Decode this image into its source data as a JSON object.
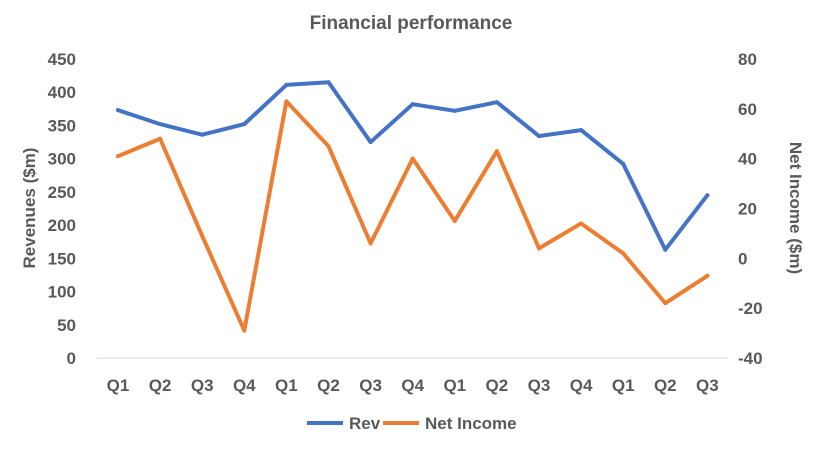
{
  "chart_data": {
    "type": "line",
    "title": "Financial performance",
    "categories": [
      "Q1",
      "Q2",
      "Q3",
      "Q4",
      "Q1",
      "Q2",
      "Q3",
      "Q4",
      "Q1",
      "Q2",
      "Q3",
      "Q4",
      "Q1",
      "Q2",
      "Q3"
    ],
    "ylabel": "Revenues ($m)",
    "y2label": "Net Income ($m)",
    "ylim": [
      0,
      450
    ],
    "y2lim": [
      -40,
      80
    ],
    "yticks": [
      0,
      50,
      100,
      150,
      200,
      250,
      300,
      350,
      400,
      450
    ],
    "y2ticks": [
      -40,
      -20,
      0,
      20,
      40,
      60,
      80
    ],
    "grid": false,
    "legend_position": "bottom",
    "series": [
      {
        "name": "Rev",
        "axis": "left",
        "color": "#4472C4",
        "values": [
          373,
          352,
          336,
          352,
          411,
          415,
          325,
          382,
          372,
          385,
          334,
          343,
          292,
          163,
          245
        ]
      },
      {
        "name": "Net Income",
        "axis": "right",
        "color": "#ED7D31",
        "values": [
          41,
          48,
          9,
          -29,
          63,
          45,
          6,
          40,
          15,
          43,
          4,
          14,
          2,
          -18,
          -7
        ]
      }
    ]
  }
}
